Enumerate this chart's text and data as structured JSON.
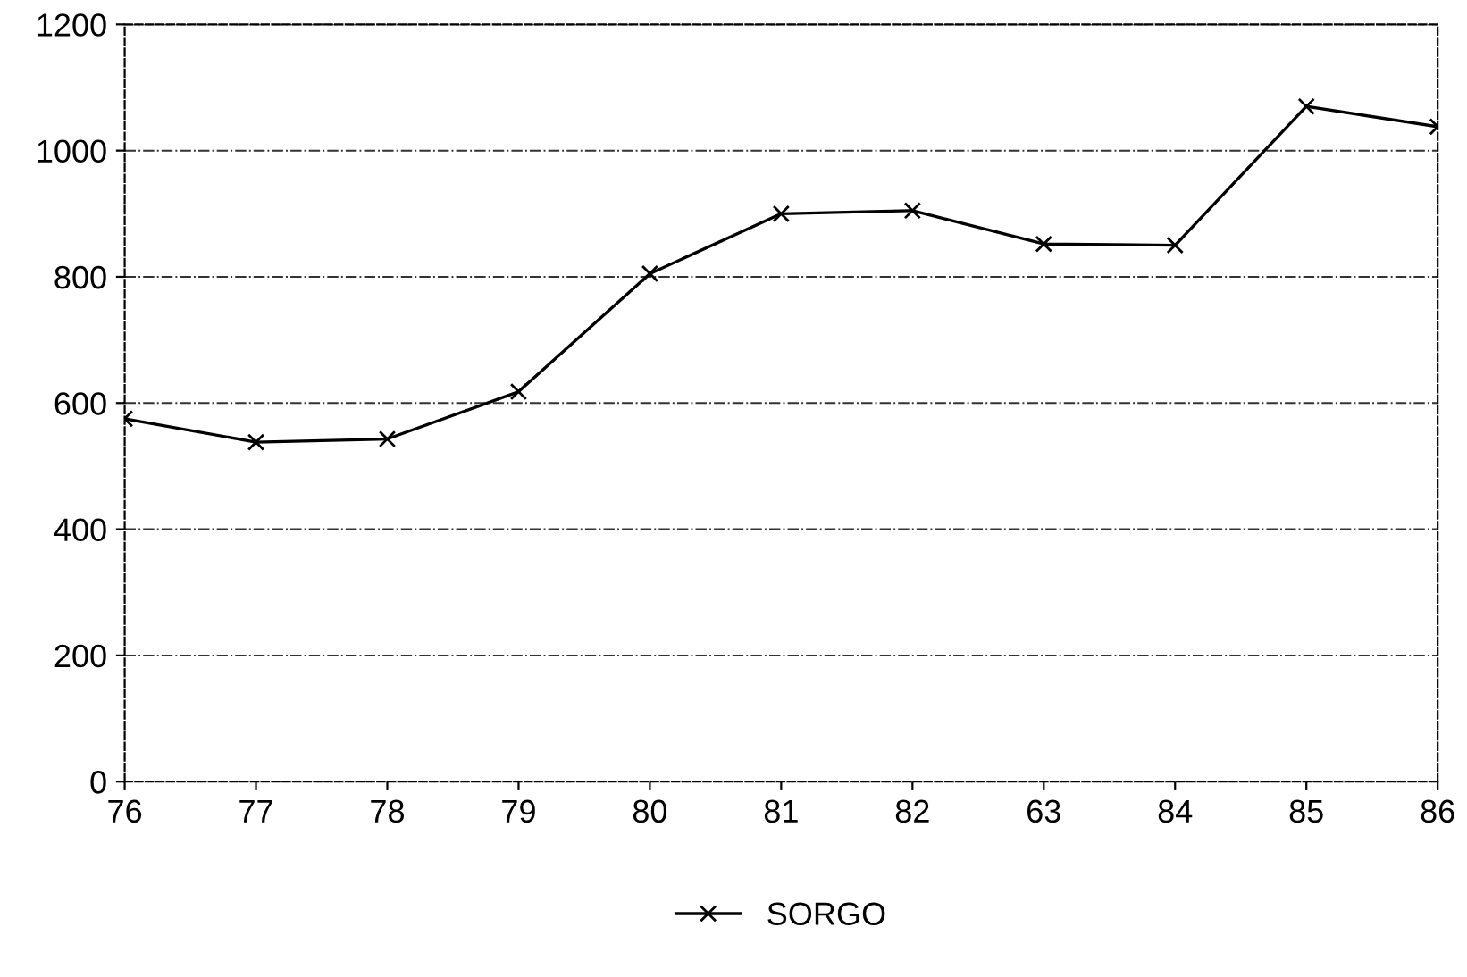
{
  "chart_data": {
    "type": "line",
    "categories": [
      "76",
      "77",
      "78",
      "79",
      "80",
      "81",
      "82",
      "63",
      "84",
      "85",
      "86"
    ],
    "series": [
      {
        "name": "SORGO",
        "color": "#000000",
        "values": [
          575,
          538,
          543,
          618,
          805,
          900,
          905,
          852,
          850,
          1070,
          1038
        ]
      }
    ],
    "ylim": [
      0,
      1200
    ],
    "yticks": [
      0,
      200,
      400,
      600,
      800,
      1000,
      1200
    ],
    "grid": "y",
    "legend": "bottom",
    "marker": "cross",
    "line_style": "solid"
  }
}
